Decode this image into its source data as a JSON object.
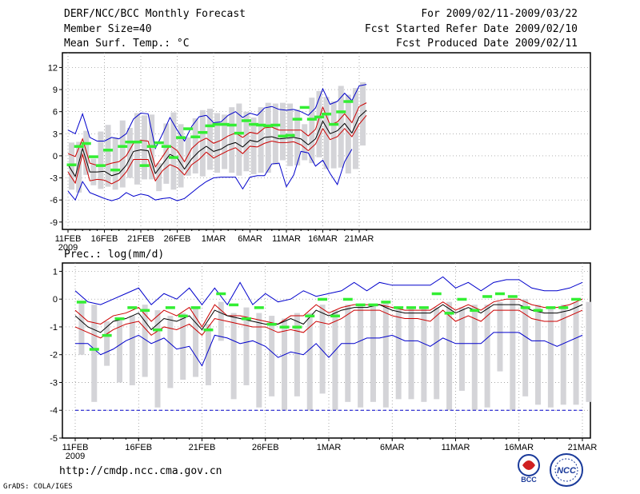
{
  "header": {
    "title": "DERF/NCC/BCC Monthly Forecast",
    "member_size": "Member Size=40",
    "variable": "Mean Surf. Temp.: °C",
    "period": "For 2009/02/11-2009/03/22",
    "started": "Fcst Started Refer Date 2009/02/10",
    "produced": "Fcst Produced Date 2009/02/11"
  },
  "footer": {
    "url": "http://cmdp.ncc.cma.gov.cn",
    "credit": "GrADS: COLA/IGES",
    "logo_bcc": "BCC",
    "logo_ncc": "NCC"
  },
  "colors": {
    "max_min": "#0000cc",
    "spread": "#cc0000",
    "median": "#000000",
    "obs": "#33ee33",
    "box": "#d4d4d8",
    "grid": "#888888"
  },
  "chart_data": [
    {
      "type": "line",
      "title": "Mean Surf. Temp.: °C",
      "x_tick_labels": [
        "11FEB",
        "16FEB",
        "21FEB",
        "26FEB",
        "1MAR",
        "6MAR",
        "11MAR",
        "16MAR",
        "21MAR"
      ],
      "x_year_label": "2009",
      "ylim": [
        -10,
        14
      ],
      "y_ticks": [
        -9,
        -6,
        -3,
        0,
        3,
        6,
        9,
        12
      ],
      "series": [
        {
          "name": "max",
          "values": [
            3.5,
            3,
            5.7,
            2.5,
            2,
            2,
            2.5,
            2.3,
            3,
            5,
            5.8,
            5.7,
            1,
            3,
            5.2,
            3.5,
            2,
            4,
            5.3,
            5.5,
            4.5,
            4.6,
            5.5,
            6,
            5.2,
            5.8,
            5.5,
            6.5,
            6.7,
            6.3,
            6.2,
            6.3,
            6,
            5.5,
            6.5,
            9.1,
            7,
            7.4,
            8.5,
            7.5,
            9.5,
            9.7
          ]
        },
        {
          "name": "upper",
          "values": [
            0.3,
            -0.1,
            2.3,
            -1,
            -1.3,
            -1.3,
            -1,
            -0.8,
            0,
            1.7,
            2.1,
            2,
            -1.5,
            -0.1,
            1.4,
            0.7,
            -0.8,
            1,
            1.9,
            2.4,
            1.7,
            2.1,
            2.7,
            3.1,
            2.5,
            3.2,
            3,
            3.8,
            3.9,
            3.5,
            3.5,
            3.5,
            3.5,
            2.7,
            3.6,
            6.6,
            4.2,
            4.6,
            5.7,
            4.5,
            6.7,
            7.2
          ]
        },
        {
          "name": "median",
          "values": [
            -1.2,
            -2.8,
            1,
            -2.2,
            -2.2,
            -2.1,
            -2.7,
            -2.4,
            -1.3,
            0.6,
            0.8,
            0.7,
            -2.4,
            -1.1,
            0.2,
            -0.3,
            -1.8,
            -0.4,
            0.6,
            1.3,
            0.6,
            0.9,
            1.5,
            1.8,
            1.2,
            2.1,
            1.9,
            2.5,
            2.6,
            2.3,
            2.4,
            2.5,
            2.3,
            1.5,
            2.3,
            4.7,
            3,
            3.4,
            4.4,
            3.1,
            5.3,
            6.2
          ]
        },
        {
          "name": "lower",
          "values": [
            -2.2,
            -3.7,
            0.2,
            -3.4,
            -3.2,
            -3.3,
            -3.8,
            -3.3,
            -2.2,
            -0.5,
            -0.5,
            -0.5,
            -3.4,
            -2,
            -1.2,
            -1.6,
            -2.6,
            -1.2,
            -0.5,
            0.5,
            -0.3,
            0.2,
            0.7,
            1.1,
            0.3,
            1.3,
            1.2,
            1.7,
            2,
            1.8,
            1.8,
            1.9,
            1.5,
            0.7,
            1.6,
            3.7,
            2.2,
            2.6,
            3.7,
            2.6,
            4.3,
            5.5
          ]
        },
        {
          "name": "min",
          "values": [
            -4.8,
            -6,
            -3.5,
            -5,
            -5.4,
            -5.8,
            -6.1,
            -5.8,
            -5,
            -5.5,
            -5.2,
            -5.4,
            -6,
            -5.8,
            -5.7,
            -6.1,
            -5.8,
            -5,
            -4.2,
            -3.5,
            -3,
            -2.9,
            -2.9,
            -2.9,
            -4.5,
            -2.9,
            -2.7,
            -2.7,
            -1.1,
            -1,
            -4.2,
            -2.6,
            0.6,
            0.4,
            -1.4,
            -0.6,
            -2.4,
            -3.9,
            -0.8,
            0.9,
            null,
            null
          ]
        },
        {
          "name": "box_top",
          "values": [
            1.8,
            1.9,
            3.4,
            -0.4,
            3.3,
            4.2,
            2.5,
            4.8,
            3.8,
            5.8,
            5.5,
            5.6,
            -1,
            4.4,
            5.9,
            4.3,
            2.5,
            5.1,
            6.2,
            6.4,
            5.8,
            5.6,
            6.6,
            7.1,
            6,
            5.2,
            6.6,
            7.2,
            7.1,
            7.2,
            7.1,
            6.3,
            4.3,
            7.9,
            8.8,
            8,
            7.4,
            9.5,
            8.3,
            9.2,
            10
          ]
        },
        {
          "name": "box_bottom",
          "values": [
            -4.6,
            -5,
            -2.6,
            -4,
            -4.5,
            -4.2,
            -4.6,
            -4.3,
            -3,
            -3.9,
            -3.2,
            -3.2,
            -4.8,
            -3.8,
            -4.6,
            -4.3,
            -2.7,
            -2.4,
            -2.8,
            -1.9,
            -2.3,
            -1.8,
            -2.3,
            -2.7,
            -2.1,
            -2.5,
            -2.3,
            -2.3,
            -1.2,
            -0.6,
            -1.4,
            -1.3,
            -0.6,
            -1,
            -0.2,
            -1.8,
            -1.7,
            -1.6,
            -2.4,
            -1.8,
            1.4
          ]
        },
        {
          "name": "observed",
          "values": [
            -1.2,
            1.3,
            1.7,
            -0.1,
            -1.3,
            0.8,
            -1.9,
            1.3,
            1.9,
            1.9,
            -1.3,
            1.3,
            1.8,
            1.3,
            -0.2,
            2.5,
            3.7,
            2.6,
            3.2,
            4.1,
            4.3,
            4.3,
            4.2,
            3.1,
            4.8,
            4.3,
            4.2,
            4.1,
            4.2,
            2.7,
            2.8,
            5,
            6.6,
            5,
            5.3,
            5.7,
            4.3,
            6,
            7.4
          ]
        }
      ]
    },
    {
      "type": "line",
      "title": "Prec.: log(mm/d)",
      "x_tick_labels": [
        "11FEB",
        "16FEB",
        "21FEB",
        "26FEB",
        "1MAR",
        "6MAR",
        "11MAR",
        "16MAR",
        "21MAR"
      ],
      "x_year_label": "2009",
      "ylim": [
        -5,
        1.3
      ],
      "y_ticks": [
        -5,
        -4,
        -3,
        -2,
        -1,
        0,
        1
      ],
      "series": [
        {
          "name": "max",
          "values": [
            0.3,
            -0.1,
            -0.2,
            0,
            0.2,
            0.4,
            -0.2,
            0.2,
            0,
            0.4,
            -0.2,
            0.4,
            -0.2,
            0.6,
            -0.2,
            0.2,
            -0.1,
            0,
            0.3,
            0.1,
            0.2,
            0.3,
            0.6,
            0.3,
            0.6,
            0.5,
            0.5,
            0.5,
            0.5,
            0.8,
            0.4,
            0.6,
            0.3,
            0.6,
            0.7,
            0.7,
            0.4,
            0.3,
            0.3,
            0.4,
            0.6
          ]
        },
        {
          "name": "upper",
          "values": [
            -0.4,
            -0.8,
            -0.9,
            -0.6,
            -0.5,
            -0.3,
            -0.8,
            -0.4,
            -0.6,
            -0.3,
            -1,
            -0.2,
            -0.6,
            -0.6,
            -0.7,
            -0.8,
            -0.9,
            -0.6,
            -0.6,
            -0.2,
            -0.5,
            -0.3,
            -0.2,
            -0.2,
            -0.2,
            -0.3,
            -0.4,
            -0.4,
            -0.4,
            -0.1,
            -0.4,
            -0.2,
            -0.4,
            -0.1,
            0,
            0,
            -0.2,
            -0.3,
            -0.3,
            -0.2,
            0
          ]
        },
        {
          "name": "median",
          "values": [
            -0.6,
            -1,
            -1.2,
            -0.8,
            -0.7,
            -0.5,
            -1.1,
            -0.7,
            -0.8,
            -0.6,
            -1.1,
            -0.4,
            -0.6,
            -0.7,
            -0.8,
            -0.9,
            -0.9,
            -0.7,
            -0.9,
            -0.4,
            -0.6,
            -0.4,
            -0.3,
            -0.3,
            -0.2,
            -0.4,
            -0.5,
            -0.5,
            -0.5,
            -0.2,
            -0.5,
            -0.3,
            -0.5,
            -0.2,
            -0.2,
            -0.2,
            -0.4,
            -0.5,
            -0.5,
            -0.4,
            -0.2
          ]
        },
        {
          "name": "lower",
          "values": [
            -1,
            -1.2,
            -1.4,
            -1.1,
            -0.9,
            -0.8,
            -1.3,
            -1,
            -1.1,
            -0.9,
            -1.3,
            -0.7,
            -0.8,
            -0.9,
            -1,
            -1,
            -1.2,
            -1.1,
            -1.2,
            -0.8,
            -0.9,
            -0.7,
            -0.4,
            -0.4,
            -0.4,
            -0.6,
            -0.7,
            -0.7,
            -0.8,
            -0.4,
            -0.8,
            -0.6,
            -0.8,
            -0.4,
            -0.4,
            -0.4,
            -0.7,
            -0.8,
            -0.8,
            -0.6,
            -0.4
          ]
        },
        {
          "name": "min",
          "values": [
            -1.6,
            -1.6,
            -2,
            -1.8,
            -1.5,
            -1.3,
            -1.6,
            -1.4,
            -1.8,
            -1.7,
            -2.4,
            -1.3,
            -1.4,
            -1.6,
            -1.5,
            -1.7,
            -2.1,
            -1.9,
            -2,
            -1.6,
            -2.1,
            -1.6,
            -1.6,
            -1.4,
            -1.4,
            -1.3,
            -1.5,
            -1.5,
            -1.7,
            -1.4,
            -1.6,
            -1.6,
            -1.6,
            -1.2,
            -1.2,
            -1.2,
            -1.5,
            -1.5,
            -1.7,
            -1.5,
            -1.3
          ]
        },
        {
          "name": "box_top",
          "values": [
            -0.1,
            -0.2,
            -0.8,
            -0.7,
            -0.6,
            -0.2,
            -0.4,
            -0.6,
            -0.5,
            -0.3,
            -0.9,
            -0.1,
            -0.5,
            -0.3,
            -0.5,
            -0.6,
            -0.7,
            -0.5,
            -0.5,
            -0.2,
            -0.4,
            -0.2,
            -0.2,
            -0.2,
            -0.1,
            -0.3,
            -0.3,
            -0.3,
            -0.3,
            -0.1,
            -0.3,
            -0.2,
            -0.2,
            -0.1,
            0,
            0,
            -0.2,
            -0.3,
            -0.2,
            -0.1,
            -0.1
          ]
        },
        {
          "name": "box_bottom",
          "values": [
            -2,
            -3.7,
            -2.4,
            -3,
            -3.1,
            -2.8,
            -3.9,
            -3.2,
            -2.9,
            -2.8,
            -3.1,
            -1.5,
            -3.6,
            -3.1,
            -3.9,
            -3.5,
            -4,
            -3.5,
            -4,
            -3.4,
            -4,
            -3.7,
            -3.9,
            -3.7,
            -3.9,
            -3.6,
            -3.6,
            -3.7,
            -3.6,
            -4,
            -3.3,
            -4,
            -3.9,
            -2.6,
            -4,
            -3.5,
            -3.8,
            -3.9,
            -3.8,
            -3.8,
            -3.7
          ]
        },
        {
          "name": "observed",
          "values": [
            -0.1,
            -1.8,
            -1.3,
            -0.7,
            -0.3,
            -0.4,
            -1.1,
            -0.3,
            -0.6,
            -0.3,
            -1.1,
            0.2,
            -0.2,
            -0.7,
            -0.3,
            -0.9,
            -1,
            -1,
            -0.6,
            0,
            -0.6,
            0,
            -0.2,
            -0.2,
            -0.1,
            -0.3,
            -0.3,
            -0.3,
            0.2,
            -0.5,
            0,
            -0.4,
            0.1,
            0.2,
            0.1,
            -0.3,
            -0.4,
            -0.3,
            -0.3,
            0
          ]
        },
        {
          "name": "climatology_min",
          "values": [
            -4,
            -4,
            -4,
            -4,
            -4,
            -4,
            -4,
            -4,
            -4,
            -4,
            -4,
            -4,
            -4,
            -4,
            -4,
            -4,
            -4,
            -4,
            -4,
            -4,
            -4,
            -4,
            -4,
            -4,
            -4,
            -4,
            -4,
            -4,
            -4,
            -4,
            -4,
            -4,
            -4,
            -4,
            -4,
            -4,
            -4,
            -4,
            -4,
            -4,
            -4
          ]
        }
      ]
    }
  ]
}
